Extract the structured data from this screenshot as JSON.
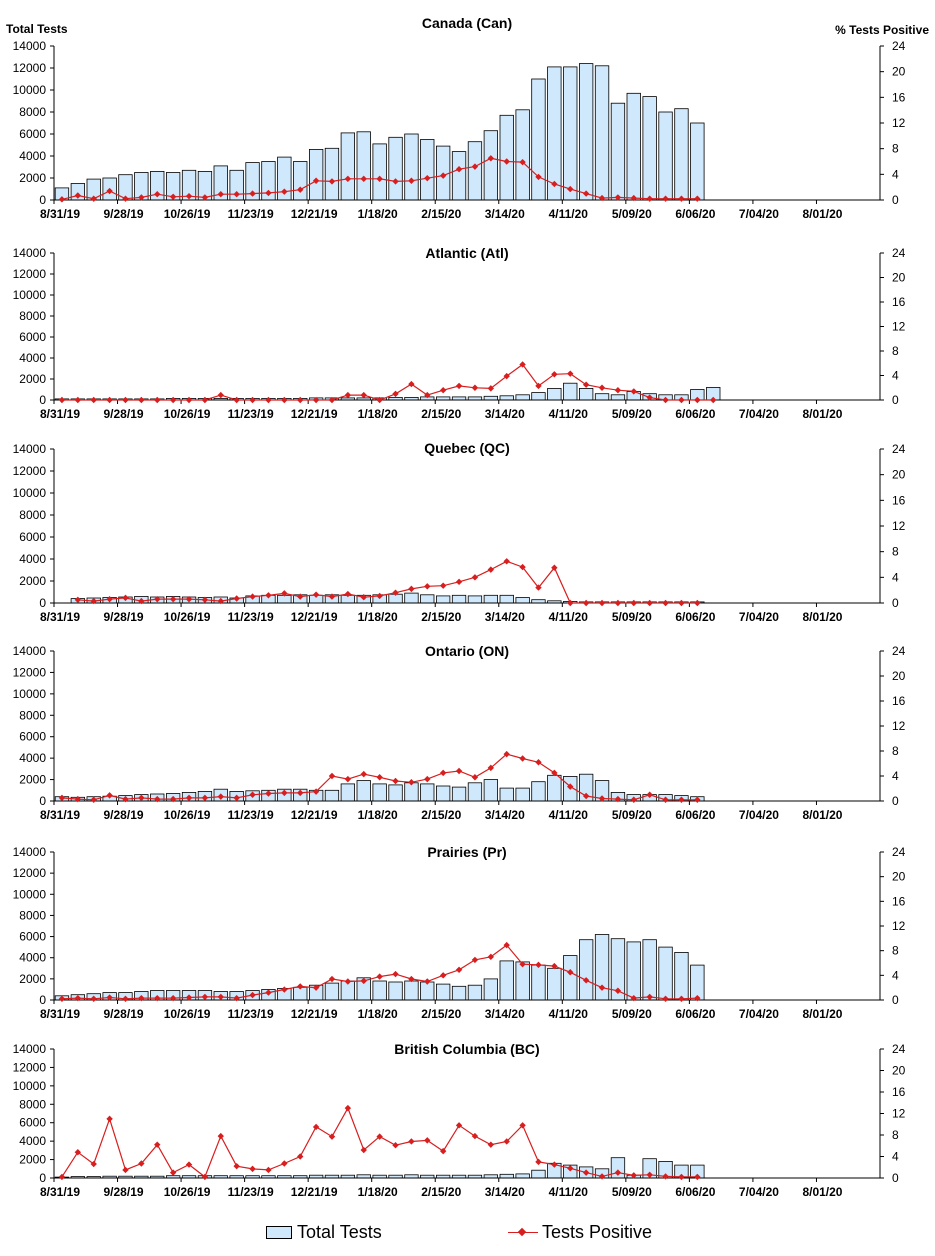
{
  "header": {
    "left_axis_title": "Total Tests",
    "right_axis_title": "% Tests Positive"
  },
  "legend": {
    "bars_label": "Total Tests",
    "line_label": "Tests Positive"
  },
  "colors": {
    "bar_fill": "#cfe8fb",
    "bar_stroke": "#000000",
    "line": "#d81e1e"
  },
  "x_tick_labels": [
    "8/31/19",
    "9/28/19",
    "10/26/19",
    "11/23/19",
    "12/21/19",
    "1/18/20",
    "2/15/20",
    "3/14/20",
    "4/11/20",
    "5/09/20",
    "6/06/20",
    "7/04/20",
    "8/01/20"
  ],
  "chart_data": [
    {
      "type": "bar",
      "title": "Canada (Can)",
      "ylabel": "Total Tests",
      "y2label": "% Tests Positive",
      "ylim": [
        0,
        14000
      ],
      "y2lim": [
        0,
        24
      ],
      "y_ticks": [
        0,
        2000,
        4000,
        6000,
        8000,
        10000,
        12000,
        14000
      ],
      "y2_ticks": [
        0,
        4,
        8,
        12,
        16,
        20,
        24
      ],
      "x_tick_labels": [
        "8/31/19",
        "9/28/19",
        "10/26/19",
        "11/23/19",
        "12/21/19",
        "1/18/20",
        "2/15/20",
        "3/14/20",
        "4/11/20",
        "5/09/20",
        "6/06/20",
        "7/04/20",
        "8/01/20"
      ],
      "weeks_total": 52,
      "series": [
        {
          "name": "Total Tests",
          "axis": "left",
          "type": "bar",
          "values": [
            1100,
            1500,
            1900,
            2000,
            2300,
            2500,
            2600,
            2500,
            2700,
            2600,
            3100,
            2700,
            3400,
            3500,
            3900,
            3500,
            4600,
            4700,
            6100,
            6200,
            5100,
            5700,
            6000,
            5500,
            4900,
            4400,
            5300,
            6300,
            7700,
            8200,
            11000,
            12100,
            12100,
            12400,
            12200,
            8800,
            9700,
            9400,
            8000,
            8300,
            7000
          ]
        },
        {
          "name": "Tests Positive",
          "axis": "right",
          "type": "line",
          "values": [
            0.1,
            0.7,
            0.2,
            1.4,
            0.2,
            0.4,
            0.9,
            0.5,
            0.6,
            0.4,
            0.9,
            0.9,
            1.0,
            1.1,
            1.3,
            1.6,
            3.0,
            2.9,
            3.3,
            3.3,
            3.3,
            2.9,
            3.0,
            3.4,
            3.8,
            4.8,
            5.2,
            6.5,
            6.0,
            5.9,
            3.6,
            2.5,
            1.7,
            1.0,
            0.3,
            0.4,
            0.3,
            0.2,
            0.2,
            0.2,
            0.2
          ]
        }
      ]
    },
    {
      "type": "bar",
      "title": "Atlantic (Atl)",
      "ylabel": "Total Tests",
      "y2label": "% Tests Positive",
      "ylim": [
        0,
        14000
      ],
      "y2lim": [
        0,
        24
      ],
      "y_ticks": [
        0,
        2000,
        4000,
        6000,
        8000,
        10000,
        12000,
        14000
      ],
      "y2_ticks": [
        0,
        4,
        8,
        12,
        16,
        20,
        24
      ],
      "x_tick_labels": [
        "8/31/19",
        "9/28/19",
        "10/26/19",
        "11/23/19",
        "12/21/19",
        "1/18/20",
        "2/15/20",
        "3/14/20",
        "4/11/20",
        "5/09/20",
        "6/06/20",
        "7/04/20",
        "8/01/20"
      ],
      "weeks_total": 52,
      "series": [
        {
          "name": "Total Tests",
          "axis": "left",
          "type": "bar",
          "values": [
            100,
            100,
            100,
            100,
            100,
            100,
            100,
            150,
            150,
            150,
            150,
            150,
            150,
            150,
            150,
            150,
            200,
            200,
            200,
            200,
            200,
            250,
            250,
            300,
            300,
            300,
            300,
            350,
            400,
            500,
            700,
            1100,
            1600,
            1100,
            600,
            500,
            800,
            600,
            500,
            500,
            1000,
            1200
          ]
        },
        {
          "name": "Tests Positive",
          "axis": "right",
          "type": "line",
          "values": [
            0,
            0,
            0,
            0,
            0,
            0,
            0,
            0,
            0,
            0,
            0.8,
            0,
            0,
            0,
            0,
            0,
            0,
            0,
            0.8,
            0.8,
            0,
            1.0,
            2.6,
            0.8,
            1.6,
            2.3,
            2.0,
            1.9,
            3.9,
            5.8,
            2.3,
            4.2,
            4.3,
            2.5,
            2.0,
            1.6,
            1.4,
            0.4,
            0,
            0,
            0,
            0
          ]
        }
      ]
    },
    {
      "type": "bar",
      "title": "Quebec (QC)",
      "ylabel": "Total Tests",
      "y2label": "% Tests Positive",
      "ylim": [
        0,
        14000
      ],
      "y2lim": [
        0,
        24
      ],
      "y_ticks": [
        0,
        2000,
        4000,
        6000,
        8000,
        10000,
        12000,
        14000
      ],
      "y2_ticks": [
        0,
        4,
        8,
        12,
        16,
        20,
        24
      ],
      "x_tick_labels": [
        "8/31/19",
        "9/28/19",
        "10/26/19",
        "11/23/19",
        "12/21/19",
        "1/18/20",
        "2/15/20",
        "3/14/20",
        "4/11/20",
        "5/09/20",
        "6/06/20",
        "7/04/20",
        "8/01/20"
      ],
      "weeks_total": 52,
      "series": [
        {
          "name": "Total Tests",
          "axis": "left",
          "type": "bar",
          "values": [
            null,
            400,
            450,
            500,
            550,
            600,
            550,
            600,
            550,
            500,
            550,
            450,
            650,
            700,
            700,
            750,
            700,
            750,
            700,
            700,
            750,
            800,
            900,
            750,
            650,
            700,
            650,
            700,
            700,
            500,
            300,
            200,
            150,
            100,
            100,
            100,
            100,
            100,
            100,
            100,
            100
          ]
        },
        {
          "name": "Tests Positive",
          "axis": "right",
          "type": "line",
          "values": [
            null,
            0.5,
            0.3,
            0.6,
            0.8,
            0.3,
            0.6,
            0.6,
            0.6,
            0.5,
            0.3,
            0.7,
            1.0,
            1.2,
            1.5,
            1.0,
            1.3,
            1.0,
            1.4,
            0.9,
            1.1,
            1.6,
            2.2,
            2.6,
            2.7,
            3.3,
            4.0,
            5.2,
            6.5,
            5.6,
            2.4,
            5.5,
            0,
            0,
            0,
            0,
            0,
            0,
            0,
            0,
            0
          ]
        }
      ]
    },
    {
      "type": "bar",
      "title": "Ontario (ON)",
      "ylabel": "Total Tests",
      "y2label": "% Tests Positive",
      "ylim": [
        0,
        14000
      ],
      "y2lim": [
        0,
        24
      ],
      "y_ticks": [
        0,
        2000,
        4000,
        6000,
        8000,
        10000,
        12000,
        14000
      ],
      "y2_ticks": [
        0,
        4,
        8,
        12,
        16,
        20,
        24
      ],
      "x_tick_labels": [
        "8/31/19",
        "9/28/19",
        "10/26/19",
        "11/23/19",
        "12/21/19",
        "1/18/20",
        "2/15/20",
        "3/14/20",
        "4/11/20",
        "5/09/20",
        "6/06/20",
        "7/04/20",
        "8/01/20"
      ],
      "weeks_total": 52,
      "series": [
        {
          "name": "Total Tests",
          "axis": "left",
          "type": "bar",
          "values": [
            400,
            350,
            400,
            450,
            500,
            600,
            650,
            700,
            800,
            900,
            1100,
            900,
            950,
            1000,
            1100,
            1100,
            1000,
            1000,
            1600,
            1900,
            1600,
            1500,
            1700,
            1600,
            1400,
            1300,
            1700,
            2000,
            1200,
            1200,
            1800,
            2400,
            2300,
            2500,
            1900,
            800,
            600,
            600,
            600,
            500,
            400
          ]
        },
        {
          "name": "Tests Positive",
          "axis": "right",
          "type": "line",
          "values": [
            0.5,
            0.3,
            0.2,
            0.9,
            0.3,
            0.5,
            0.3,
            0.3,
            0.5,
            0.5,
            0.7,
            0.5,
            1.0,
            1.2,
            1.3,
            1.3,
            1.5,
            4.0,
            3.5,
            4.3,
            3.8,
            3.2,
            3.0,
            3.5,
            4.5,
            4.8,
            3.8,
            5.3,
            7.5,
            6.8,
            6.2,
            4.5,
            2.3,
            0.8,
            0.4,
            0.3,
            0.2,
            1.0,
            0.2,
            0.2,
            0.2
          ]
        }
      ]
    },
    {
      "type": "bar",
      "title": "Prairies (Pr)",
      "ylabel": "Total Tests",
      "y2label": "% Tests Positive",
      "ylim": [
        0,
        14000
      ],
      "y2lim": [
        0,
        24
      ],
      "y_ticks": [
        0,
        2000,
        4000,
        6000,
        8000,
        10000,
        12000,
        14000
      ],
      "y2_ticks": [
        0,
        4,
        8,
        12,
        16,
        20,
        24
      ],
      "x_tick_labels": [
        "8/31/19",
        "9/28/19",
        "10/26/19",
        "11/23/19",
        "12/21/19",
        "1/18/20",
        "2/15/20",
        "3/14/20",
        "4/11/20",
        "5/09/20",
        "6/06/20",
        "7/04/20",
        "8/01/20"
      ],
      "weeks_total": 52,
      "series": [
        {
          "name": "Total Tests",
          "axis": "left",
          "type": "bar",
          "values": [
            400,
            500,
            600,
            700,
            700,
            800,
            900,
            900,
            900,
            900,
            800,
            800,
            900,
            1000,
            1100,
            1200,
            1400,
            1600,
            1800,
            2100,
            1800,
            1700,
            1800,
            1700,
            1500,
            1300,
            1400,
            2000,
            3700,
            3600,
            3300,
            3000,
            4200,
            5700,
            6200,
            5800,
            5500,
            5700,
            5000,
            4500,
            3300
          ]
        },
        {
          "name": "Tests Positive",
          "axis": "right",
          "type": "line",
          "values": [
            0.2,
            0.3,
            0.2,
            0.4,
            0.2,
            0.3,
            0.3,
            0.3,
            0.4,
            0.5,
            0.5,
            0.3,
            0.8,
            1.2,
            1.7,
            2.2,
            2.0,
            3.4,
            3.0,
            3.1,
            3.8,
            4.2,
            3.4,
            3.0,
            4.0,
            4.9,
            6.5,
            7.0,
            8.9,
            5.8,
            5.7,
            5.5,
            4.5,
            3.2,
            2.0,
            1.5,
            0.3,
            0.5,
            0.2,
            0.2,
            0.3
          ]
        }
      ]
    },
    {
      "type": "bar",
      "title": "British Columbia (BC)",
      "ylabel": "Total Tests",
      "y2label": "% Tests Positive",
      "ylim": [
        0,
        14000
      ],
      "y2lim": [
        0,
        24
      ],
      "y_ticks": [
        0,
        2000,
        4000,
        6000,
        8000,
        10000,
        12000,
        14000
      ],
      "y2_ticks": [
        0,
        4,
        8,
        12,
        16,
        20,
        24
      ],
      "x_tick_labels": [
        "8/31/19",
        "9/28/19",
        "10/26/19",
        "11/23/19",
        "12/21/19",
        "1/18/20",
        "2/15/20",
        "3/14/20",
        "4/11/20",
        "5/09/20",
        "6/06/20",
        "7/04/20",
        "8/01/20"
      ],
      "weeks_total": 52,
      "series": [
        {
          "name": "Total Tests",
          "axis": "left",
          "type": "bar",
          "values": [
            100,
            150,
            150,
            200,
            200,
            200,
            200,
            250,
            250,
            250,
            250,
            250,
            250,
            250,
            250,
            250,
            300,
            300,
            300,
            350,
            300,
            300,
            350,
            300,
            300,
            300,
            300,
            350,
            400,
            450,
            850,
            1600,
            1400,
            1200,
            1000,
            2200,
            300,
            2100,
            1800,
            1400,
            1400
          ]
        },
        {
          "name": "Tests Positive",
          "axis": "right",
          "type": "line",
          "values": [
            0.2,
            4.8,
            2.6,
            11.0,
            1.5,
            2.7,
            6.2,
            1.0,
            2.5,
            0.2,
            7.8,
            2.2,
            1.7,
            1.5,
            2.7,
            4.0,
            9.5,
            7.7,
            13.0,
            5.2,
            7.7,
            6.1,
            6.8,
            7.0,
            5.0,
            9.8,
            7.8,
            6.2,
            6.8,
            9.8,
            3.0,
            2.5,
            1.8,
            1.0,
            0.3,
            1.0,
            0.5,
            0.6,
            0.3,
            0.2,
            0.2
          ]
        }
      ]
    }
  ]
}
